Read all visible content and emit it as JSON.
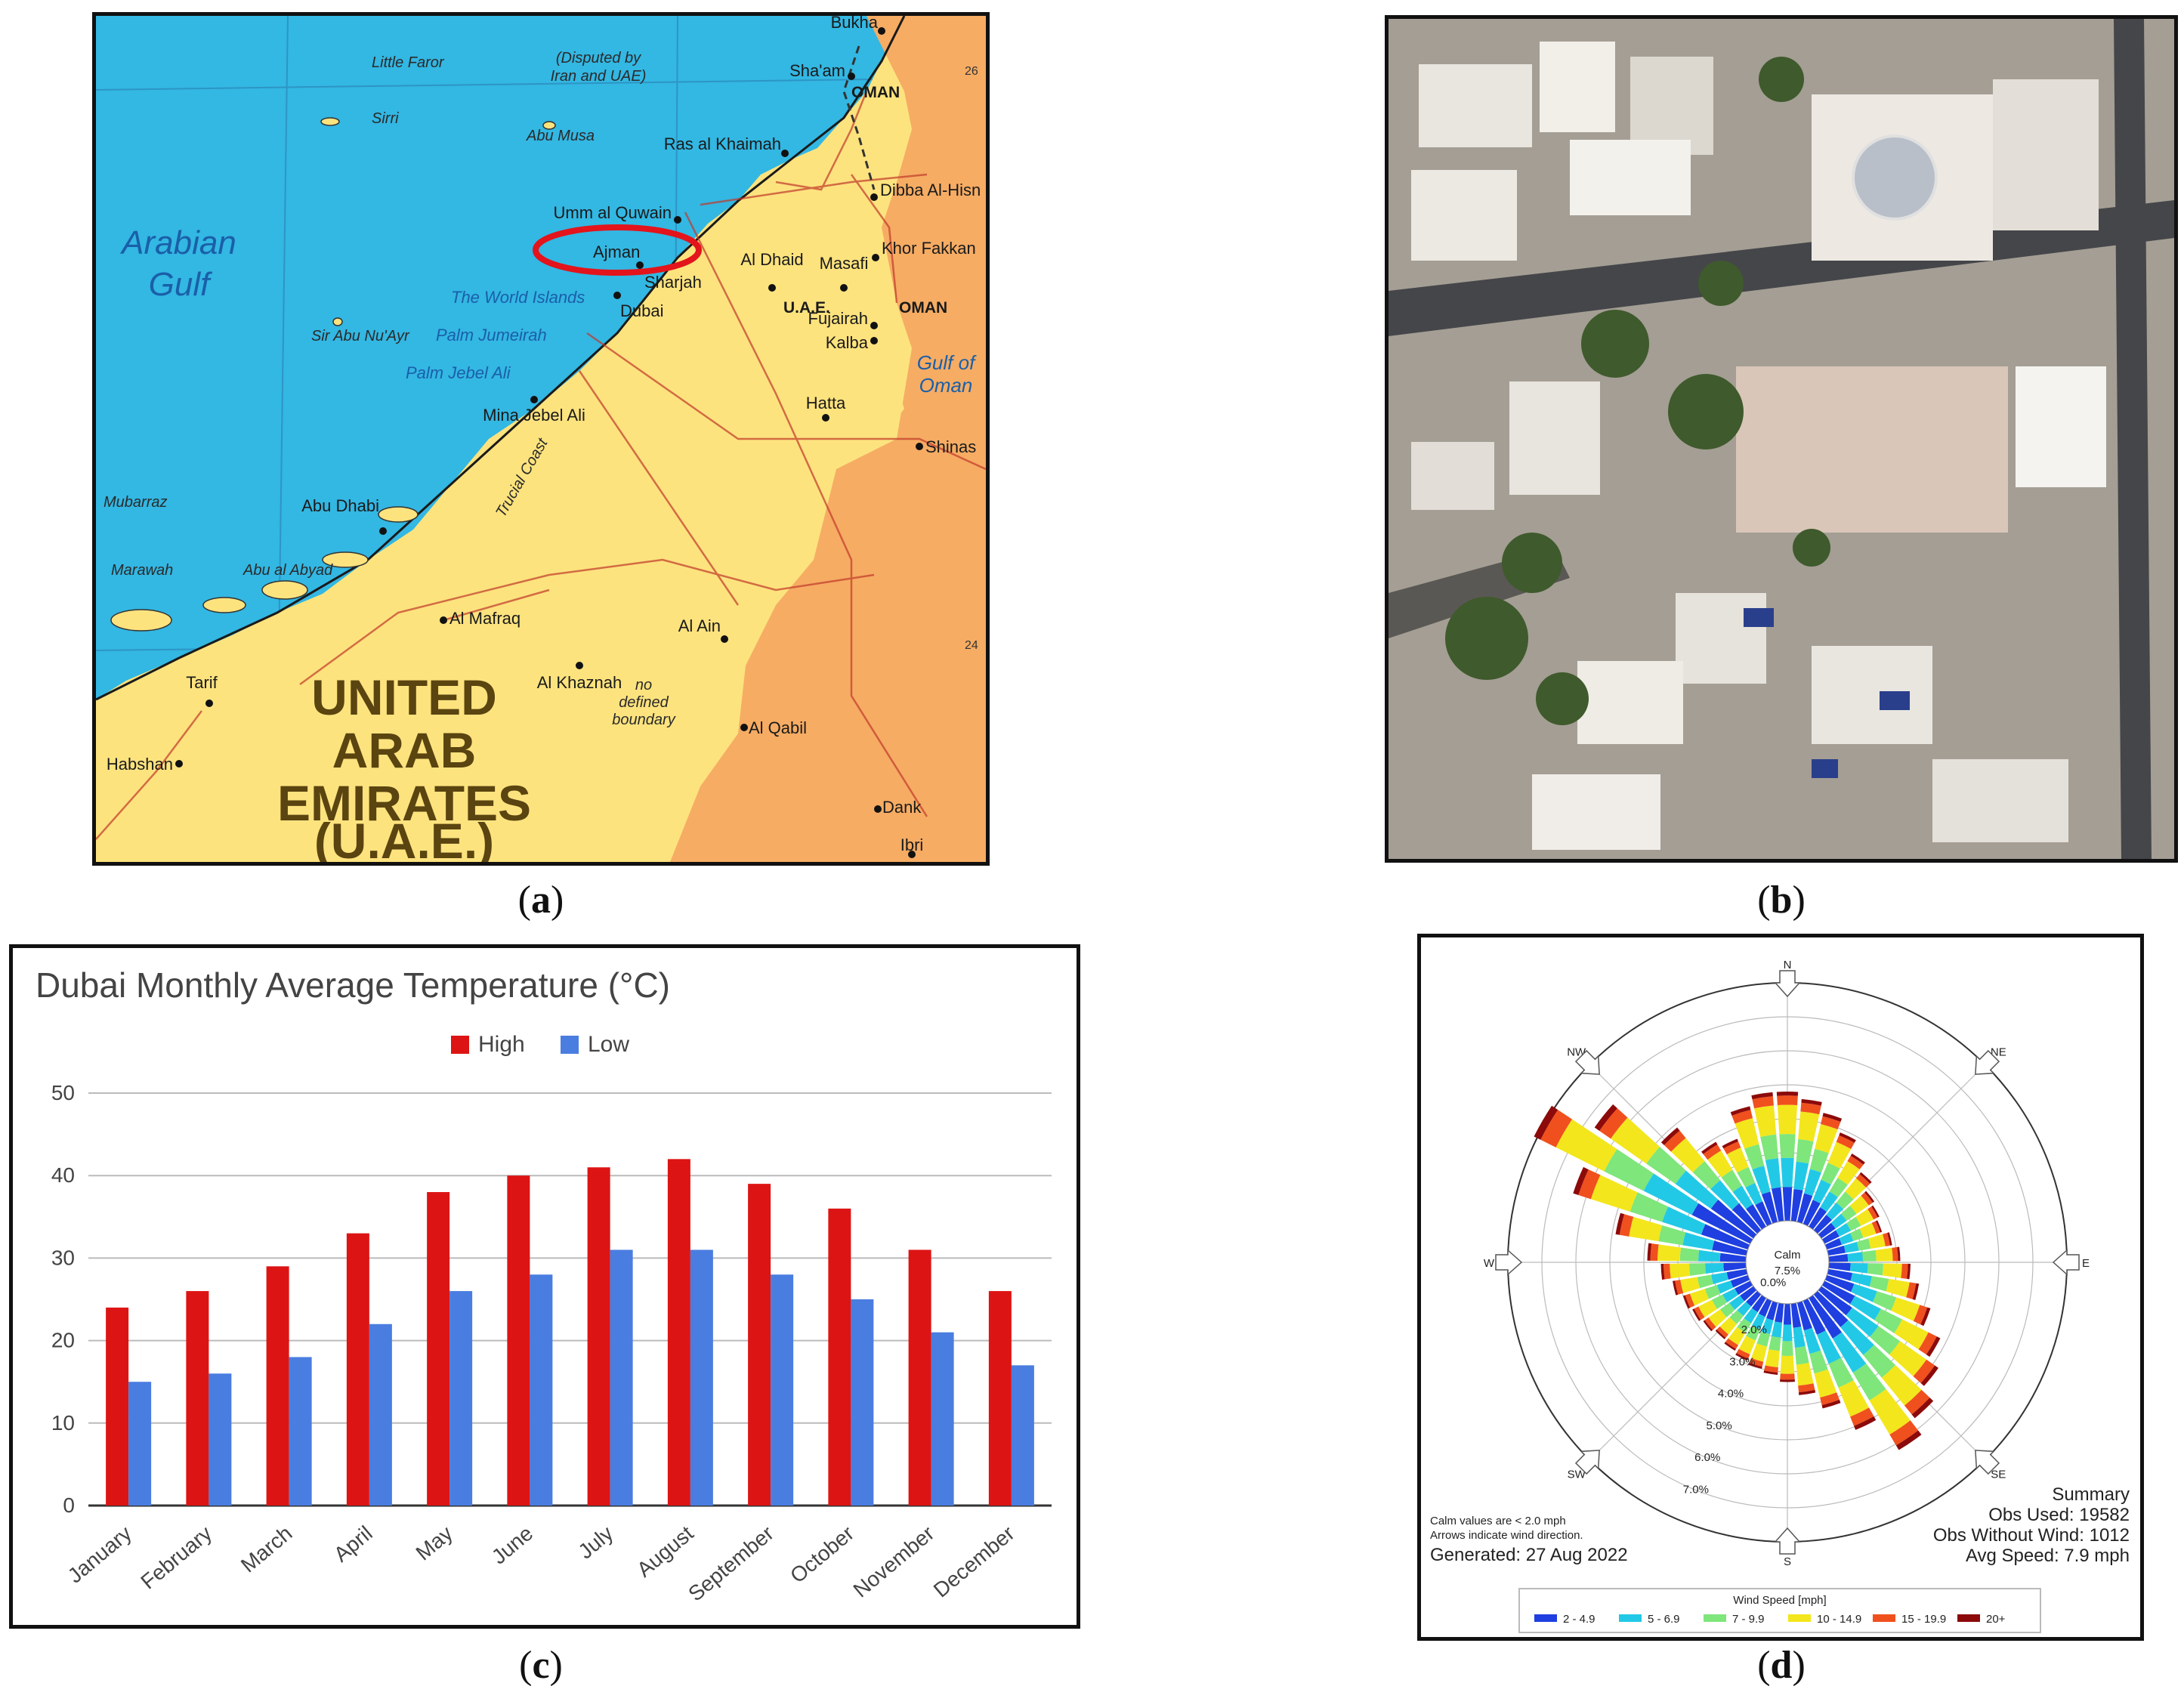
{
  "captions": {
    "a": "a",
    "b": "b",
    "c": "c",
    "d": "d"
  },
  "map": {
    "sea_labels": [
      {
        "name": "arabian-gulf",
        "line1": "Arabian",
        "line2": "Gulf"
      },
      {
        "name": "gulf-of-oman",
        "line1": "Gulf of",
        "line2": "Oman"
      }
    ],
    "country_line1": "UNITED",
    "country_line2": "ARAB",
    "country_line3": "EMIRATES",
    "country_line4": "(U.A.E.)",
    "disputed_line1": "(Disputed by",
    "disputed_line2": "Iran and UAE)",
    "trucial_coast": "Trucial Coast",
    "no_boundary_line1": "no",
    "no_boundary_line2": "defined",
    "no_boundary_line3": "boundary",
    "oman_label_1": "OMAN",
    "oman_label_2": "OMAN",
    "uae_label": "U.A.E.",
    "gridline_label_1": "26",
    "gridline_label_2": "24",
    "highlight_city": "Ajman",
    "islands": [
      "Little Faror",
      "Sirri",
      "Abu Musa",
      "Sir Abu Nu'Ayr",
      "The World Islands",
      "Palm Jumeirah",
      "Palm Jebel Ali",
      "Mubarraz",
      "Marawah",
      "Abu al Abyad"
    ],
    "cities": [
      "Bukha",
      "Sha'am",
      "Ras al Khaimah",
      "Dibba Al-Hisn",
      "Umm al Quwain",
      "Sharjah",
      "Al Dhaid",
      "Masafi",
      "Khor Fakkan",
      "Dubai",
      "Fujairah",
      "Kalba",
      "Mina Jebel Ali",
      "Hatta",
      "Shinas",
      "Abu Dhabi",
      "Al Mafraq",
      "Al Ain",
      "Al Khaznah",
      "Tarif",
      "Al Qabil",
      "Habshan",
      "Dank",
      "Ibri"
    ]
  },
  "chart_data": [
    {
      "type": "bar",
      "title": "Dubai Monthly Average Temperature (°C)",
      "categories": [
        "January",
        "February",
        "March",
        "April",
        "May",
        "June",
        "July",
        "August",
        "September",
        "October",
        "November",
        "December"
      ],
      "series": [
        {
          "name": "High",
          "color": "#dd1414",
          "values": [
            24,
            26,
            29,
            33,
            38,
            40,
            41,
            42,
            39,
            36,
            31,
            26
          ]
        },
        {
          "name": "Low",
          "color": "#4a7de0",
          "values": [
            15,
            16,
            18,
            22,
            26,
            28,
            31,
            31,
            28,
            25,
            21,
            17
          ]
        }
      ],
      "ylim": [
        0,
        50
      ],
      "yticks": [
        0,
        10,
        20,
        30,
        40,
        50
      ],
      "grid": true,
      "legend": "top-center"
    },
    {
      "type": "wind-rose",
      "directions": [
        "N",
        "NE",
        "E",
        "SE",
        "S",
        "SW",
        "W",
        "NW"
      ],
      "calm_label": "Calm",
      "calm_value": "7.5%",
      "ring_labels": [
        "0.0%",
        "2.0%",
        "3.0%",
        "4.0%",
        "5.0%",
        "6.0%",
        "7.0%"
      ],
      "legend_title": "Wind Speed [mph]",
      "speed_bins": [
        {
          "label": "2 - 4.9",
          "color": "#1f3fe0"
        },
        {
          "label": "5 - 6.9",
          "color": "#22c9e6"
        },
        {
          "label": "7 - 9.9",
          "color": "#7ee67a"
        },
        {
          "label": "10 - 14.9",
          "color": "#f3e61c"
        },
        {
          "label": "15 - 19.9",
          "color": "#f0501e"
        },
        {
          "label": "20+",
          "color": "#8c0a0a"
        }
      ],
      "sector_totals_percent": [
        3.9,
        3.7,
        3.4,
        3.0,
        2.6,
        2.3,
        2.0,
        1.9,
        1.8,
        2.0,
        2.2,
        2.5,
        2.8,
        3.3,
        3.9,
        4.3,
        4.8,
        5.3,
        4.2,
        3.3,
        2.8,
        2.4,
        2.2,
        2.1,
        2.0,
        1.9,
        1.8,
        1.9,
        2.0,
        2.1,
        2.3,
        2.6,
        3.0,
        4.0,
        5.5,
        7.2,
        5.8,
        4.0,
        3.0,
        2.8,
        3.6,
        3.9
      ],
      "note_line1": "Calm values are < 2.0 mph",
      "note_line2": "Arrows indicate wind direction.",
      "generated": "Generated: 27 Aug 2022",
      "summary_title": "Summary",
      "obs_used": "Obs Used: 19582",
      "obs_without_wind": "Obs Without Wind: 1012",
      "avg_speed": "Avg Speed: 7.9 mph"
    }
  ]
}
